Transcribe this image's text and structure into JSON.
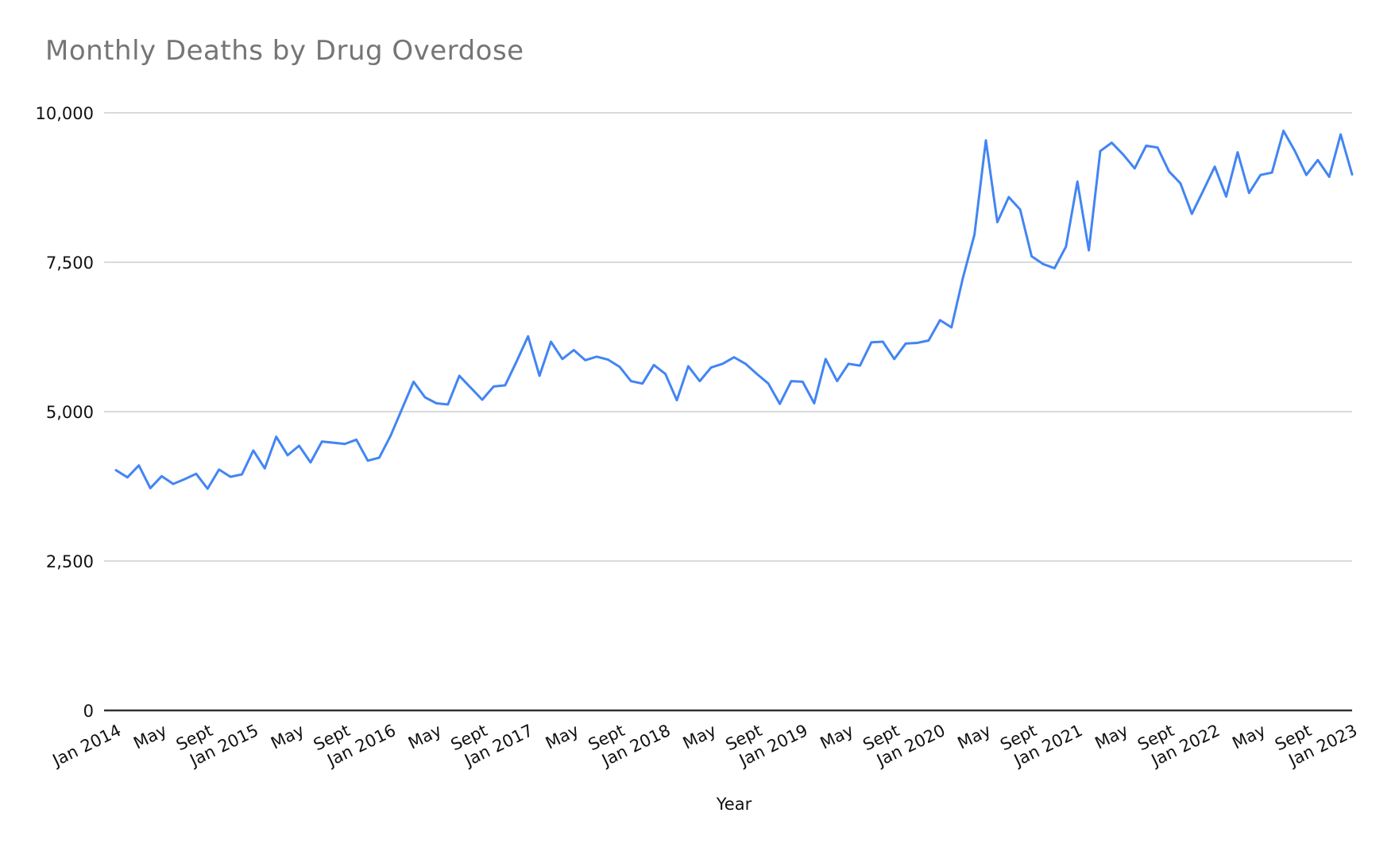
{
  "page": {
    "background": "#ffffff"
  },
  "chart_data": {
    "type": "line",
    "title": "Monthly Deaths by Drug Overdose",
    "xlabel": "Year",
    "ylabel": "",
    "legend": "none",
    "grid": "horizontal",
    "ylim": [
      0,
      10000
    ],
    "y_ticks": [
      0,
      2500,
      5000,
      7500,
      10000
    ],
    "y_tick_labels": [
      "0",
      "2,500",
      "5,000",
      "7,500",
      "10,000"
    ],
    "x_tick_every": 4,
    "x_tick_labels": [
      "Jan 2014",
      "May",
      "Sept",
      "Jan 2015",
      "May",
      "Sept",
      "Jan 2016",
      "May",
      "Sept",
      "Jan 2017",
      "May",
      "Sept",
      "Jan 2018",
      "May",
      "Sept",
      "Jan 2019",
      "May",
      "Sept",
      "Jan 2020",
      "May",
      "Sept",
      "Jan 2021",
      "May",
      "Sept",
      "Jan 2022",
      "May",
      "Sept",
      "Jan 2023"
    ],
    "x": [
      "Jan 2014",
      "Feb 2014",
      "Mar 2014",
      "Apr 2014",
      "May 2014",
      "Jun 2014",
      "Jul 2014",
      "Aug 2014",
      "Sep 2014",
      "Oct 2014",
      "Nov 2014",
      "Dec 2014",
      "Jan 2015",
      "Feb 2015",
      "Mar 2015",
      "Apr 2015",
      "May 2015",
      "Jun 2015",
      "Jul 2015",
      "Aug 2015",
      "Sep 2015",
      "Oct 2015",
      "Nov 2015",
      "Dec 2015",
      "Jan 2016",
      "Feb 2016",
      "Mar 2016",
      "Apr 2016",
      "May 2016",
      "Jun 2016",
      "Jul 2016",
      "Aug 2016",
      "Sep 2016",
      "Oct 2016",
      "Nov 2016",
      "Dec 2016",
      "Jan 2017",
      "Feb 2017",
      "Mar 2017",
      "Apr 2017",
      "May 2017",
      "Jun 2017",
      "Jul 2017",
      "Aug 2017",
      "Sep 2017",
      "Oct 2017",
      "Nov 2017",
      "Dec 2017",
      "Jan 2018",
      "Feb 2018",
      "Mar 2018",
      "Apr 2018",
      "May 2018",
      "Jun 2018",
      "Jul 2018",
      "Aug 2018",
      "Sep 2018",
      "Oct 2018",
      "Nov 2018",
      "Dec 2018",
      "Jan 2019",
      "Feb 2019",
      "Mar 2019",
      "Apr 2019",
      "May 2019",
      "Jun 2019",
      "Jul 2019",
      "Aug 2019",
      "Sep 2019",
      "Oct 2019",
      "Nov 2019",
      "Dec 2019",
      "Jan 2020",
      "Feb 2020",
      "Mar 2020",
      "Apr 2020",
      "May 2020",
      "Jun 2020",
      "Jul 2020",
      "Aug 2020",
      "Sep 2020",
      "Oct 2020",
      "Nov 2020",
      "Dec 2020",
      "Jan 2021",
      "Feb 2021",
      "Mar 2021",
      "Apr 2021",
      "May 2021",
      "Jun 2021",
      "Jul 2021",
      "Aug 2021",
      "Sep 2021",
      "Oct 2021",
      "Nov 2021",
      "Dec 2021",
      "Jan 2022",
      "Feb 2022",
      "Mar 2022",
      "Apr 2022",
      "May 2022",
      "Jun 2022",
      "Jul 2022",
      "Aug 2022",
      "Sep 2022",
      "Oct 2022",
      "Nov 2022",
      "Dec 2022",
      "Jan 2023"
    ],
    "series": [
      {
        "name": "Monthly deaths",
        "color": "#4285f4",
        "values": [
          4020,
          3900,
          4100,
          3720,
          3920,
          3790,
          3870,
          3960,
          3710,
          4030,
          3910,
          3950,
          4350,
          4050,
          4580,
          4270,
          4430,
          4150,
          4500,
          4480,
          4460,
          4530,
          4180,
          4230,
          4600,
          5050,
          5500,
          5240,
          5140,
          5120,
          5600,
          5400,
          5200,
          5420,
          5440,
          5840,
          6260,
          5600,
          6170,
          5880,
          6030,
          5860,
          5920,
          5870,
          5750,
          5510,
          5470,
          5780,
          5630,
          5190,
          5760,
          5510,
          5740,
          5800,
          5910,
          5800,
          5630,
          5470,
          5130,
          5510,
          5500,
          5140,
          5880,
          5510,
          5800,
          5770,
          6160,
          6170,
          5880,
          6140,
          6150,
          6190,
          6530,
          6410,
          7240,
          7960,
          9540,
          8170,
          8590,
          8380,
          7600,
          7470,
          7400,
          7760,
          8850,
          7700,
          9360,
          9500,
          9300,
          9070,
          9450,
          9420,
          9020,
          8820,
          8310,
          8700,
          9100,
          8600,
          9340,
          8660,
          8960,
          9000,
          9700,
          9360,
          8960,
          9210,
          8930,
          9640,
          8970
        ]
      }
    ],
    "colors": {
      "title": "#757575",
      "axis_text": "#111111",
      "gridline": "#dadada",
      "axis_line": "#333333"
    }
  }
}
